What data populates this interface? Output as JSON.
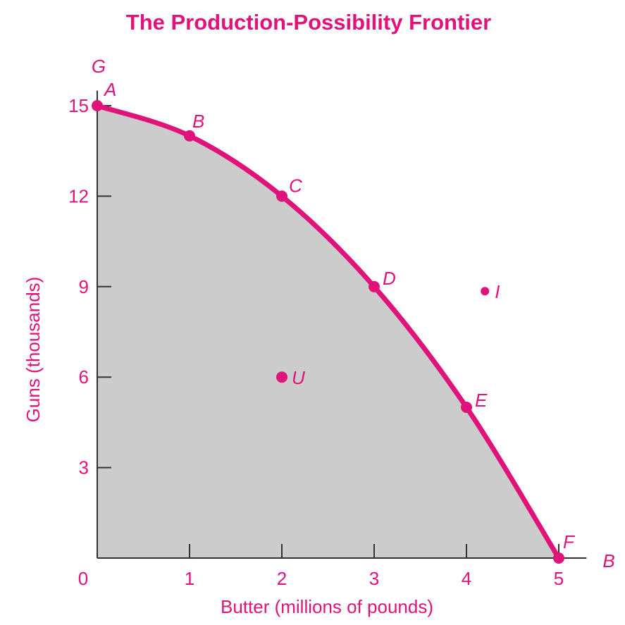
{
  "chart_data": {
    "type": "line",
    "title": "The Production-Possibility Frontier",
    "xlabel": "Butter (millions of pounds)",
    "ylabel": "Guns (thousands)",
    "x_axis_letter": "B",
    "y_axis_letter": "G",
    "origin_label": "0",
    "xlim": [
      0,
      5.3
    ],
    "ylim": [
      0,
      15.5
    ],
    "x_ticks": [
      1,
      2,
      3,
      4,
      5
    ],
    "x_tick_labels": [
      "1",
      "2",
      "3",
      "4",
      "5"
    ],
    "y_ticks": [
      3,
      6,
      9,
      12,
      15
    ],
    "y_tick_labels": [
      "3",
      "6",
      "9",
      "12",
      "15"
    ],
    "frontier_points": [
      {
        "label": "A",
        "x": 0,
        "y": 15
      },
      {
        "label": "B",
        "x": 1,
        "y": 14
      },
      {
        "label": "C",
        "x": 2,
        "y": 12
      },
      {
        "label": "D",
        "x": 3,
        "y": 9
      },
      {
        "label": "E",
        "x": 4,
        "y": 5
      },
      {
        "label": "F",
        "x": 5,
        "y": 0
      }
    ],
    "other_points": [
      {
        "label": "U",
        "x": 2,
        "y": 6
      },
      {
        "label": "I",
        "x": 4.2,
        "y": 8.85
      }
    ],
    "shaded_region": "attainable area under frontier",
    "colors": {
      "accent": "#E0137B",
      "fill": "#CCCCCC",
      "axis": "#333333"
    }
  }
}
